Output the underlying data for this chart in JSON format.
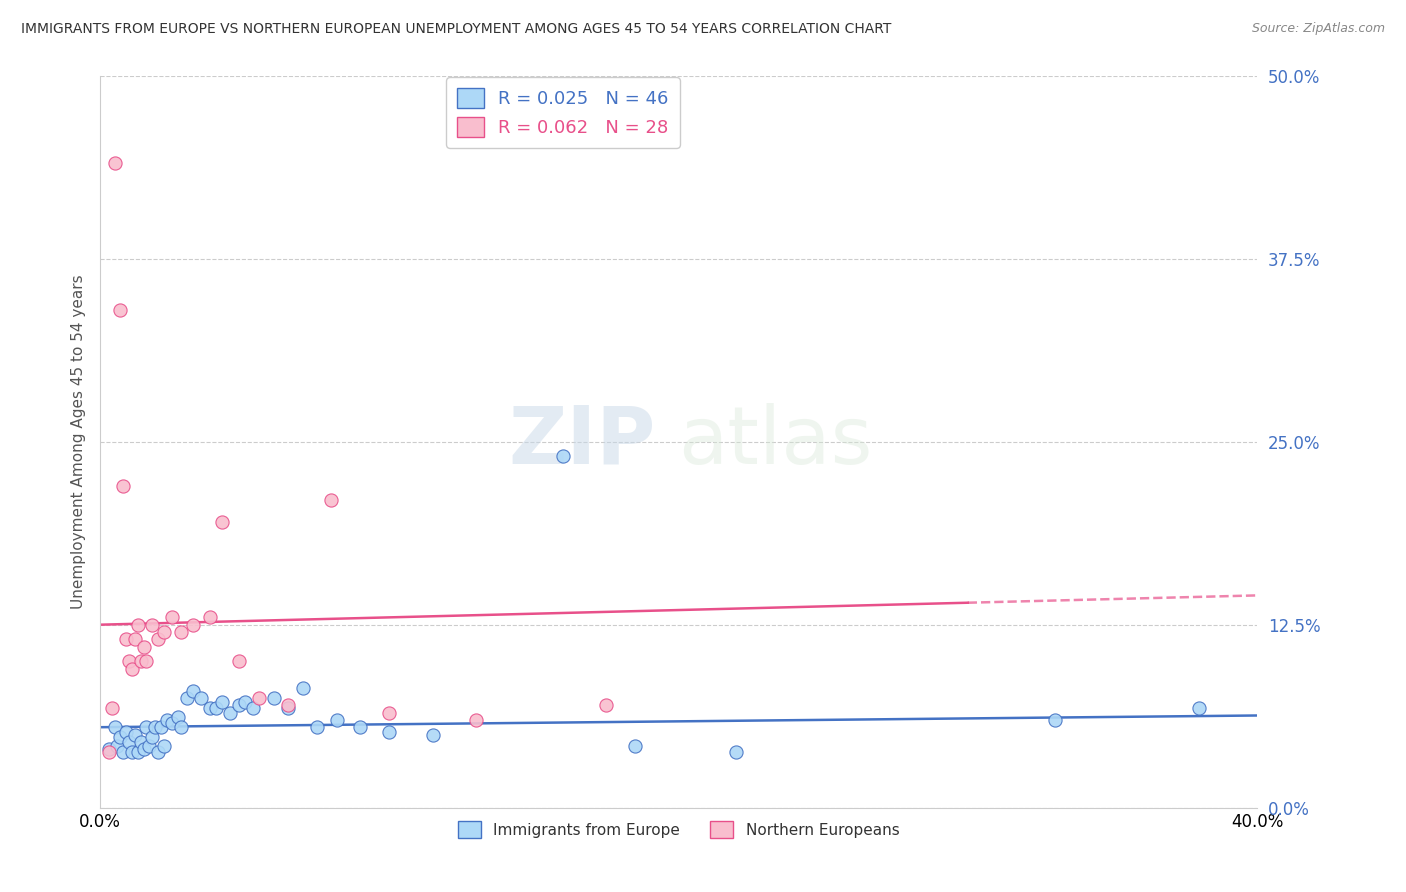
{
  "title": "IMMIGRANTS FROM EUROPE VS NORTHERN EUROPEAN UNEMPLOYMENT AMONG AGES 45 TO 54 YEARS CORRELATION CHART",
  "source": "Source: ZipAtlas.com",
  "ylabel": "Unemployment Among Ages 45 to 54 years",
  "xlabel_blue": "Immigrants from Europe",
  "xlabel_pink": "Northern Europeans",
  "xlim": [
    0.0,
    0.4
  ],
  "ylim": [
    0.0,
    0.5
  ],
  "yticks_right": [
    0.0,
    0.125,
    0.25,
    0.375,
    0.5
  ],
  "ytick_labels_right": [
    "0.0%",
    "12.5%",
    "25.0%",
    "37.5%",
    "50.0%"
  ],
  "xtick_positions": [
    0.0,
    0.4
  ],
  "xtick_labels": [
    "0.0%",
    "40.0%"
  ],
  "blue_R": 0.025,
  "blue_N": 46,
  "pink_R": 0.062,
  "pink_N": 28,
  "blue_color": "#ADD8F7",
  "pink_color": "#F9BECE",
  "blue_line_color": "#4472C4",
  "pink_line_color": "#E8508A",
  "watermark_zip": "ZIP",
  "watermark_atlas": "atlas",
  "blue_x": [
    0.003,
    0.005,
    0.006,
    0.007,
    0.008,
    0.009,
    0.01,
    0.011,
    0.012,
    0.013,
    0.014,
    0.015,
    0.016,
    0.017,
    0.018,
    0.019,
    0.02,
    0.021,
    0.022,
    0.023,
    0.025,
    0.027,
    0.028,
    0.03,
    0.032,
    0.035,
    0.038,
    0.04,
    0.042,
    0.045,
    0.048,
    0.05,
    0.053,
    0.06,
    0.065,
    0.07,
    0.075,
    0.082,
    0.09,
    0.1,
    0.115,
    0.16,
    0.185,
    0.22,
    0.33,
    0.38
  ],
  "blue_y": [
    0.04,
    0.055,
    0.042,
    0.048,
    0.038,
    0.052,
    0.045,
    0.038,
    0.05,
    0.038,
    0.045,
    0.04,
    0.055,
    0.042,
    0.048,
    0.055,
    0.038,
    0.055,
    0.042,
    0.06,
    0.058,
    0.062,
    0.055,
    0.075,
    0.08,
    0.075,
    0.068,
    0.068,
    0.072,
    0.065,
    0.07,
    0.072,
    0.068,
    0.075,
    0.068,
    0.082,
    0.055,
    0.06,
    0.055,
    0.052,
    0.05,
    0.24,
    0.042,
    0.038,
    0.06,
    0.068
  ],
  "pink_x": [
    0.003,
    0.004,
    0.005,
    0.007,
    0.008,
    0.009,
    0.01,
    0.011,
    0.012,
    0.013,
    0.014,
    0.015,
    0.016,
    0.018,
    0.02,
    0.022,
    0.025,
    0.028,
    0.032,
    0.038,
    0.042,
    0.048,
    0.055,
    0.065,
    0.08,
    0.1,
    0.13,
    0.175
  ],
  "pink_y": [
    0.038,
    0.068,
    0.44,
    0.34,
    0.22,
    0.115,
    0.1,
    0.095,
    0.115,
    0.125,
    0.1,
    0.11,
    0.1,
    0.125,
    0.115,
    0.12,
    0.13,
    0.12,
    0.125,
    0.13,
    0.195,
    0.1,
    0.075,
    0.07,
    0.21,
    0.065,
    0.06,
    0.07
  ]
}
